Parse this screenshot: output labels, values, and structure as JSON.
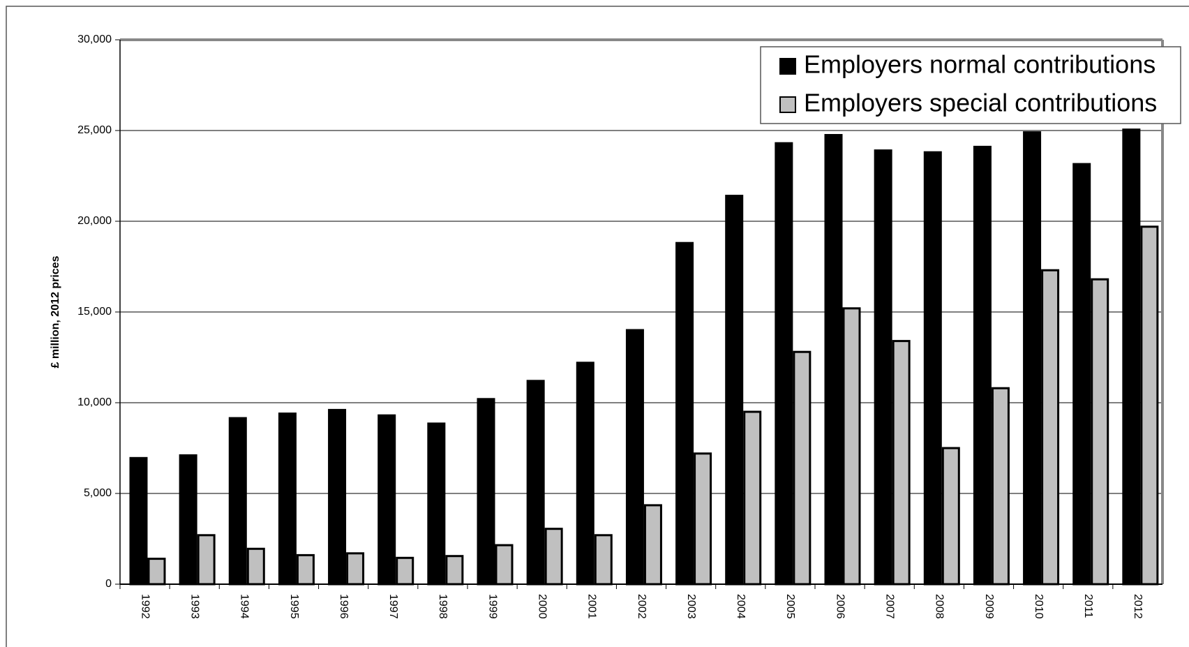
{
  "chart_data": {
    "type": "bar",
    "y_label": "£ million, 2012 prices",
    "categories": [
      "1992",
      "1993",
      "1994",
      "1995",
      "1996",
      "1997",
      "1998",
      "1999",
      "2000",
      "2001",
      "2002",
      "2003",
      "2004",
      "2005",
      "2006",
      "2007",
      "2008",
      "2009",
      "2010",
      "2011",
      "2012"
    ],
    "series": [
      {
        "name": "Employers normal contributions",
        "color": "#000000",
        "values": [
          6950,
          7100,
          9150,
          9400,
          9600,
          9300,
          8850,
          10200,
          11200,
          12200,
          14000,
          18800,
          21400,
          24300,
          24750,
          23900,
          23800,
          24100,
          24900,
          23150,
          25050
        ]
      },
      {
        "name": "Employers special contributions",
        "color": "#c0c0c0",
        "values": [
          1400,
          2700,
          1950,
          1600,
          1700,
          1450,
          1550,
          2150,
          3050,
          2700,
          4350,
          7200,
          9500,
          12800,
          15200,
          13400,
          7500,
          10800,
          17300,
          16800,
          19700
        ]
      }
    ],
    "ylim": [
      0,
      30000
    ],
    "yticks": [
      0,
      {
        "value": 5000,
        "label": "5,000"
      },
      {
        "value": 10000,
        "label": "10,000"
      },
      {
        "value": 15000,
        "label": "15,000"
      },
      {
        "value": 20000,
        "label": "20,000"
      },
      {
        "value": 25000,
        "label": "25,000"
      },
      {
        "value": 30000,
        "label": "30,000"
      }
    ],
    "grid": true,
    "legend": "top-right"
  }
}
